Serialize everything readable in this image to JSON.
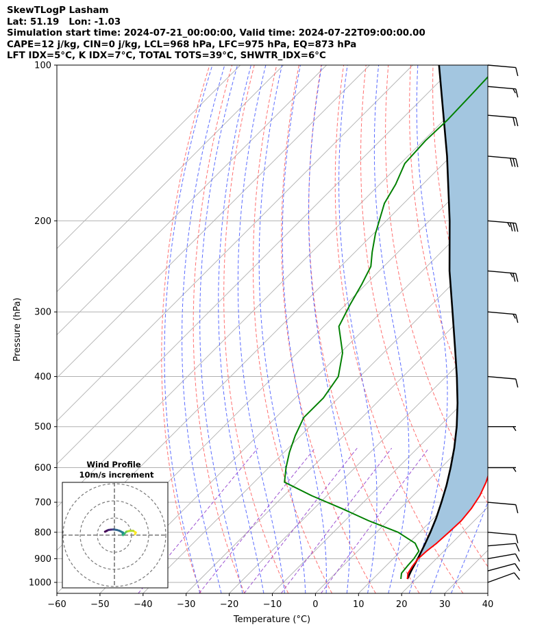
{
  "header": {
    "line1": "SkewTLogP Lasham",
    "line2": "Lat: 51.19   Lon: -1.03",
    "line3": "Simulation start time: 2024-07-21_00:00:00, Valid time: 2024-07-22T09:00:00.00",
    "line4": "CAPE=12 j/kg, CIN=0 j/kg, LCL=968 hPa, LFC=975 hPa, EQ=873 hPa",
    "line5": "LFT IDX=5°C, K IDX=7°C, TOTAL TOTS=39°C, SHWTR_IDX=6°C"
  },
  "chart_data": {
    "type": "line",
    "subtype": "skew-t log-p",
    "xlabel": "Temperature (°C)",
    "ylabel": "Pressure (hPa)",
    "xlim": [
      -60,
      40
    ],
    "ylim": [
      1050,
      100
    ],
    "y_scale": "log",
    "x_ticks": [
      -60,
      -50,
      -40,
      -30,
      -20,
      -10,
      0,
      10,
      20,
      30,
      40
    ],
    "x_tick_labels": [
      "−60",
      "−50",
      "−40",
      "−30",
      "−20",
      "−10",
      "0",
      "10",
      "20",
      "30",
      "40"
    ],
    "y_ticks": [
      100,
      200,
      300,
      400,
      500,
      600,
      700,
      800,
      900,
      1000
    ],
    "y_tick_labels": [
      "100",
      "200",
      "300",
      "400",
      "500",
      "600",
      "700",
      "800",
      "900",
      "1000"
    ],
    "grid": true,
    "colors": {
      "temperature": "#ff0000",
      "dewpoint": "#008000",
      "parcel": "#000000",
      "cape_fill": "#a3c6e0",
      "dry_adiabat": "#ff6f6f",
      "moist_adiabat": "#5a6bff",
      "mixing_ratio": "#9b4fd1",
      "isotherm": "#b0b0b0"
    },
    "series": [
      {
        "key": "temperature",
        "pressure": [
          985,
          960,
          930,
          900,
          870,
          840,
          800,
          760,
          720,
          680,
          640,
          600,
          560,
          520,
          480,
          440,
          400,
          360,
          330,
          300,
          270,
          245,
          225,
          210,
          198,
          185,
          170,
          155,
          140,
          128,
          115,
          108,
          100
        ],
        "value": [
          18.0,
          16.8,
          16.2,
          15.8,
          16.0,
          16.5,
          16.8,
          17.0,
          16.5,
          15.5,
          13.8,
          11.5,
          8.5,
          5.2,
          1.5,
          -2.8,
          -7.5,
          -13.5,
          -18.2,
          -23.5,
          -29.7,
          -35.5,
          -39.5,
          -42.5,
          -45.0,
          -46.8,
          -48.0,
          -49.5,
          -51.8,
          -54.8,
          -57.2,
          -58.5,
          -60.5
        ]
      },
      {
        "key": "dewpoint",
        "pressure": [
          985,
          960,
          930,
          900,
          870,
          840,
          800,
          760,
          720,
          680,
          640,
          600,
          560,
          520,
          480,
          440,
          400,
          360,
          320,
          290,
          265,
          245,
          230,
          212,
          198,
          185,
          170,
          155,
          140,
          128,
          115,
          100
        ],
        "value": [
          16.5,
          15.3,
          15.0,
          14.8,
          14.2,
          11.5,
          5.0,
          -4.5,
          -13.5,
          -23.5,
          -33.0,
          -36.0,
          -38.8,
          -41.3,
          -43.5,
          -43.5,
          -45.0,
          -49.5,
          -56.5,
          -59.0,
          -61.0,
          -63.0,
          -66.0,
          -69.5,
          -72.0,
          -74.5,
          -76.3,
          -79.0,
          -79.5,
          -79.2,
          -79.5,
          -80.0
        ]
      },
      {
        "key": "parcel",
        "pressure": [
          985,
          950,
          900,
          850,
          800,
          750,
          700,
          650,
          600,
          550,
          500,
          450,
          400,
          350,
          300,
          250,
          200,
          150,
          100
        ],
        "value": [
          18.0,
          17.0,
          15.7,
          14.2,
          12.5,
          10.5,
          8.1,
          5.4,
          2.2,
          -1.5,
          -5.9,
          -11.2,
          -17.5,
          -24.9,
          -33.5,
          -43.7,
          -55.3,
          -70.9,
          -93.9
        ]
      }
    ],
    "wind_barbs": [
      {
        "pressure": 1000,
        "speed_kt": 10,
        "dir_deg": 250
      },
      {
        "pressure": 950,
        "speed_kt": 10,
        "dir_deg": 255
      },
      {
        "pressure": 900,
        "speed_kt": 10,
        "dir_deg": 260
      },
      {
        "pressure": 850,
        "speed_kt": 10,
        "dir_deg": 265
      },
      {
        "pressure": 800,
        "speed_kt": 10,
        "dir_deg": 275
      },
      {
        "pressure": 700,
        "speed_kt": 10,
        "dir_deg": 275
      },
      {
        "pressure": 600,
        "speed_kt": 5,
        "dir_deg": 270
      },
      {
        "pressure": 500,
        "speed_kt": 5,
        "dir_deg": 270
      },
      {
        "pressure": 400,
        "speed_kt": 10,
        "dir_deg": 275
      },
      {
        "pressure": 300,
        "speed_kt": 15,
        "dir_deg": 275
      },
      {
        "pressure": 250,
        "speed_kt": 25,
        "dir_deg": 275
      },
      {
        "pressure": 200,
        "speed_kt": 35,
        "dir_deg": 275
      },
      {
        "pressure": 150,
        "speed_kt": 30,
        "dir_deg": 275
      },
      {
        "pressure": 125,
        "speed_kt": 20,
        "dir_deg": 275
      },
      {
        "pressure": 110,
        "speed_kt": 15,
        "dir_deg": 275
      },
      {
        "pressure": 100,
        "speed_kt": 10,
        "dir_deg": 275
      }
    ],
    "hodograph": {
      "title": "Wind Profile",
      "subtitle": "10m/s increment",
      "ring_step_ms": 10,
      "ring_count": 3,
      "u_ms": [
        12.0,
        12.5,
        11.0,
        9.0,
        7.0,
        6.0,
        5.0,
        4.8,
        5.0,
        4.0,
        3.0,
        1.5,
        -0.5,
        -2.0,
        -3.5,
        -4.5,
        -5.5
      ],
      "v_ms": [
        0.5,
        1.5,
        2.5,
        2.5,
        2.0,
        1.0,
        0.0,
        0.8,
        1.5,
        2.0,
        2.5,
        3.0,
        3.3,
        3.2,
        3.0,
        2.5,
        2.0
      ]
    }
  }
}
